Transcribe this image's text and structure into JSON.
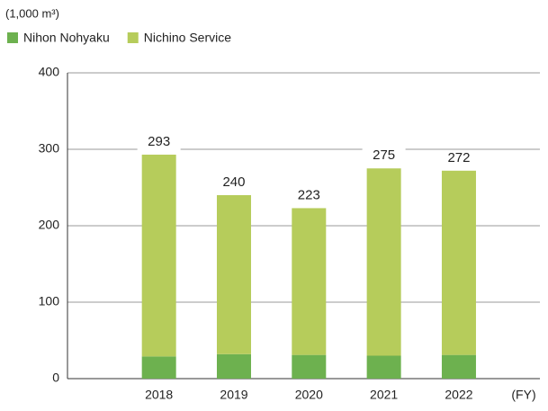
{
  "chart_data": {
    "type": "stacked_bar",
    "unit_label": "(1,000 m³)",
    "x_unit": "(FY)",
    "categories": [
      "2018",
      "2019",
      "2020",
      "2021",
      "2022"
    ],
    "series": [
      {
        "name": "Nihon Nohyaku",
        "color": "#6db14f",
        "values": [
          29,
          32,
          31,
          30,
          31
        ]
      },
      {
        "name": "Nichino Service",
        "color": "#b6cc5b",
        "values": [
          264,
          208,
          192,
          245,
          241
        ]
      }
    ],
    "totals": [
      293,
      240,
      223,
      275,
      272
    ],
    "ylim": [
      0,
      400
    ],
    "yticks": [
      0,
      100,
      200,
      300,
      400
    ],
    "grid": true
  }
}
